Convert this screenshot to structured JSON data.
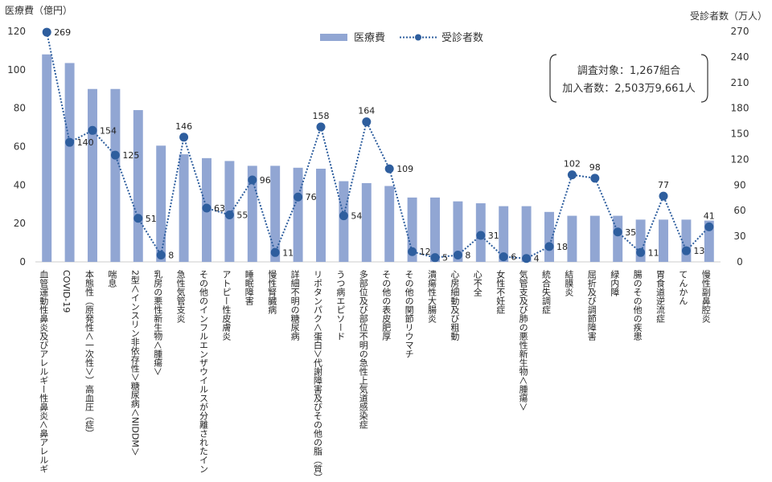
{
  "chart_data": {
    "type": "bar+line",
    "left_axis": {
      "title": "医療費（億円）",
      "range": [
        0,
        120
      ],
      "ticks": [
        0,
        20,
        40,
        60,
        80,
        100,
        120
      ]
    },
    "right_axis": {
      "title": "受診者数（万人）",
      "range": [
        0,
        270
      ],
      "ticks": [
        0,
        30,
        60,
        90,
        120,
        150,
        180,
        210,
        240,
        270
      ]
    },
    "legend": {
      "placement": "top-center"
    },
    "series": [
      {
        "name": "医療費",
        "kind": "bar",
        "axis": "left",
        "color": "#91a6d3",
        "values": [
          108,
          103.5,
          90,
          90,
          79,
          60.5,
          56,
          54,
          52.5,
          50,
          50,
          49,
          48.5,
          42,
          41,
          39.5,
          33.5,
          33.5,
          31.5,
          30.5,
          29,
          29,
          26,
          24,
          24,
          24,
          22,
          22,
          22,
          21.5
        ]
      },
      {
        "name": "受診者数",
        "kind": "line",
        "axis": "right",
        "color": "#2e5e9e",
        "line_style": "dotted",
        "values": [
          269,
          140,
          154,
          125,
          51,
          8,
          146,
          63,
          55,
          96,
          11,
          76,
          158,
          54,
          164,
          109,
          12,
          5,
          8,
          31,
          6,
          4,
          18,
          102,
          98,
          35,
          11,
          77,
          13,
          41
        ],
        "data_labels": [
          "269",
          "140",
          "154",
          "125",
          "51",
          "8",
          "146",
          "63",
          "55",
          "96",
          "11",
          "76",
          "158",
          "54",
          "164",
          "109",
          "12",
          "5",
          "8",
          "31",
          "6",
          "4",
          "18",
          "102",
          "98",
          "35",
          "11",
          "77",
          "13",
          "41"
        ]
      }
    ],
    "categories": [
      "血管運動性鼻炎及びアレルギー性鼻炎＜鼻アレルギ",
      "COVID-19",
      "本態性（原発性＜一次性＞）高血圧（症）",
      "喘息",
      "2型＜インスリン非依存性＞糖尿病＜NIDDM＞",
      "乳房の悪性新生物＜腫瘍＞",
      "急性気管支炎",
      "その他のインフルエンザウイルスが分離されたイン",
      "アトピー性皮膚炎",
      "睡眠障害",
      "慢性腎臓病",
      "詳細不明の糖尿病",
      "リポタンパク＜蛋白＞代謝障害及びその他の脂（質）",
      "うつ病エピソード",
      "多部位及び部位不明の急性上気道感染症",
      "その他の表皮肥厚",
      "その他の関節リウマチ",
      "潰瘍性大腸炎",
      "心房細動及び粗動",
      "心不全",
      "女性不妊症",
      "気管支及び肺の悪性新生物＜腫瘍＞",
      "統合失調症",
      "結膜炎",
      "屈折及び調節障害",
      "緑内障",
      "腸のその他の疾患",
      "胃食道逆流症",
      "てんかん",
      "慢性副鼻腔炎"
    ],
    "annotation": [
      "調査対象：1,267組合",
      "加入者数：2,503万9,661人"
    ]
  }
}
